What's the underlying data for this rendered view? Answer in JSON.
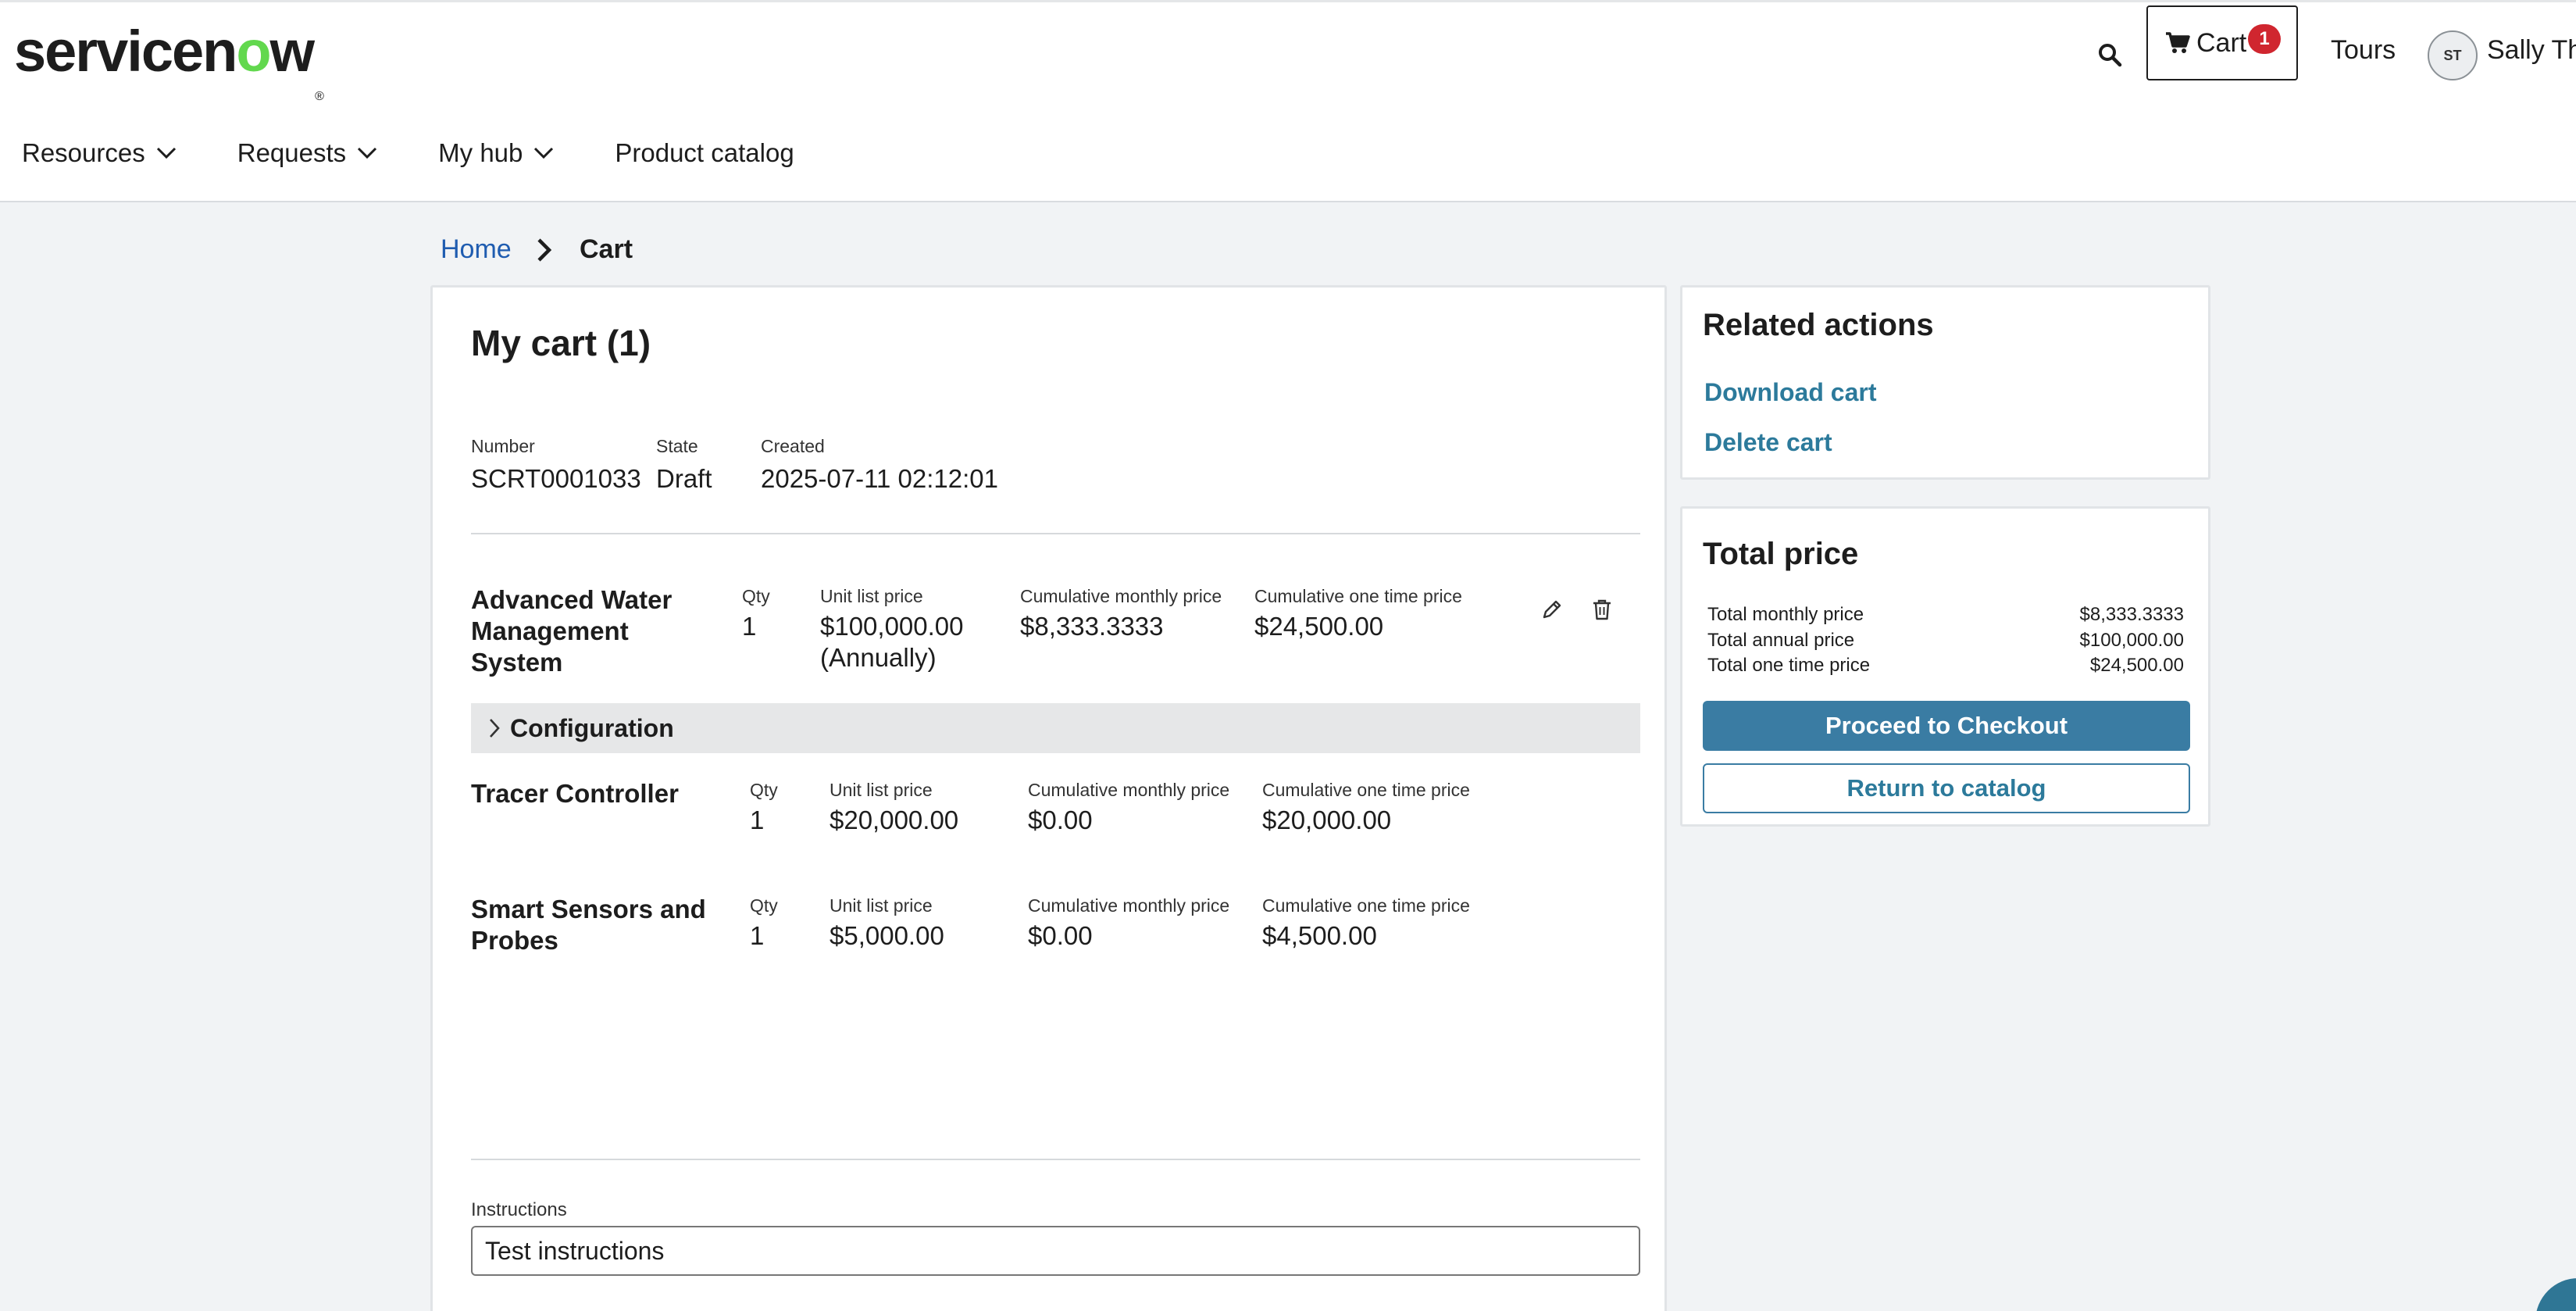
{
  "brand": {
    "logo_text_a": "servicen",
    "logo_text_o": "o",
    "logo_text_b": "w",
    "logo_reg": "®"
  },
  "header": {
    "cart_label": "Cart",
    "cart_count": "1",
    "tours_label": "Tours",
    "avatar_initials": "ST",
    "user_name": "Sally Thomas"
  },
  "nav": {
    "items": [
      {
        "label": "Resources"
      },
      {
        "label": "Requests"
      },
      {
        "label": "My hub"
      },
      {
        "label": "Product catalog"
      }
    ]
  },
  "breadcrumb": {
    "home": "Home",
    "current": "Cart"
  },
  "cart": {
    "title": "My cart (1)",
    "meta": {
      "number_label": "Number",
      "number_value": "SCRT0001033",
      "state_label": "State",
      "state_value": "Draft",
      "created_label": "Created",
      "created_value": "2025-07-11 02:12:01"
    },
    "columns": {
      "qty": "Qty",
      "unit_list_price": "Unit list price",
      "cumulative_monthly_price": "Cumulative monthly price",
      "cumulative_one_time_price": "Cumulative one time price"
    },
    "items": [
      {
        "name_line1": "Advanced Water",
        "name_line2": "Management",
        "name_line3": "System",
        "qty": "1",
        "unit_price": "$100,000.00",
        "unit_price_note": "(Annually)",
        "monthly": "$8,333.3333",
        "one_time": "$24,500.00"
      },
      {
        "name_line1": "Tracer Controller",
        "qty": "1",
        "unit_price": "$20,000.00",
        "monthly": "$0.00",
        "one_time": "$20,000.00"
      },
      {
        "name_line1": "Smart Sensors and",
        "name_line2": "Probes",
        "qty": "1",
        "unit_price": "$5,000.00",
        "monthly": "$0.00",
        "one_time": "$4,500.00"
      }
    ],
    "configuration_label": "Configuration",
    "instructions_label": "Instructions",
    "instructions_value": "Test instructions"
  },
  "related_actions": {
    "title": "Related actions",
    "download": "Download cart",
    "delete": "Delete cart"
  },
  "total_price": {
    "title": "Total price",
    "monthly_label": "Total monthly price",
    "monthly_value": "$8,333.3333",
    "annual_label": "Total annual price",
    "annual_value": "$100,000.00",
    "one_time_label": "Total one time price",
    "one_time_value": "$24,500.00",
    "checkout_button": "Proceed to Checkout",
    "return_button": "Return to catalog"
  },
  "colors": {
    "accent": "#3a7ca3",
    "link": "#2c7a9b",
    "breadcrumb_link": "#1f5cb0",
    "badge": "#d0262f",
    "logo_green": "#62d84e"
  }
}
